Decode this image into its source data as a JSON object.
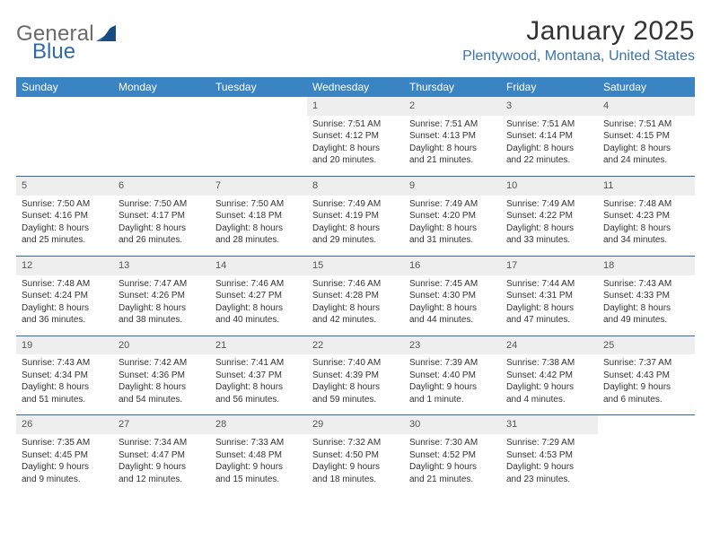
{
  "logo": {
    "word1": "General",
    "word2": "Blue"
  },
  "title": "January 2025",
  "location": "Plentywood, Montana, United States",
  "colors": {
    "header_bg": "#3b84c4",
    "header_text": "#ffffff",
    "accent": "#2f6aad",
    "daynum_bg": "#eeeeee",
    "body_text": "#333333",
    "location_text": "#3b73b0",
    "logo_gray": "#6a6a6a"
  },
  "day_headers": [
    "Sunday",
    "Monday",
    "Tuesday",
    "Wednesday",
    "Thursday",
    "Friday",
    "Saturday"
  ],
  "weeks": [
    [
      {
        "n": "",
        "l1": "",
        "l2": "",
        "l3": "",
        "l4": ""
      },
      {
        "n": "",
        "l1": "",
        "l2": "",
        "l3": "",
        "l4": ""
      },
      {
        "n": "",
        "l1": "",
        "l2": "",
        "l3": "",
        "l4": ""
      },
      {
        "n": "1",
        "l1": "Sunrise: 7:51 AM",
        "l2": "Sunset: 4:12 PM",
        "l3": "Daylight: 8 hours",
        "l4": "and 20 minutes."
      },
      {
        "n": "2",
        "l1": "Sunrise: 7:51 AM",
        "l2": "Sunset: 4:13 PM",
        "l3": "Daylight: 8 hours",
        "l4": "and 21 minutes."
      },
      {
        "n": "3",
        "l1": "Sunrise: 7:51 AM",
        "l2": "Sunset: 4:14 PM",
        "l3": "Daylight: 8 hours",
        "l4": "and 22 minutes."
      },
      {
        "n": "4",
        "l1": "Sunrise: 7:51 AM",
        "l2": "Sunset: 4:15 PM",
        "l3": "Daylight: 8 hours",
        "l4": "and 24 minutes."
      }
    ],
    [
      {
        "n": "5",
        "l1": "Sunrise: 7:50 AM",
        "l2": "Sunset: 4:16 PM",
        "l3": "Daylight: 8 hours",
        "l4": "and 25 minutes."
      },
      {
        "n": "6",
        "l1": "Sunrise: 7:50 AM",
        "l2": "Sunset: 4:17 PM",
        "l3": "Daylight: 8 hours",
        "l4": "and 26 minutes."
      },
      {
        "n": "7",
        "l1": "Sunrise: 7:50 AM",
        "l2": "Sunset: 4:18 PM",
        "l3": "Daylight: 8 hours",
        "l4": "and 28 minutes."
      },
      {
        "n": "8",
        "l1": "Sunrise: 7:49 AM",
        "l2": "Sunset: 4:19 PM",
        "l3": "Daylight: 8 hours",
        "l4": "and 29 minutes."
      },
      {
        "n": "9",
        "l1": "Sunrise: 7:49 AM",
        "l2": "Sunset: 4:20 PM",
        "l3": "Daylight: 8 hours",
        "l4": "and 31 minutes."
      },
      {
        "n": "10",
        "l1": "Sunrise: 7:49 AM",
        "l2": "Sunset: 4:22 PM",
        "l3": "Daylight: 8 hours",
        "l4": "and 33 minutes."
      },
      {
        "n": "11",
        "l1": "Sunrise: 7:48 AM",
        "l2": "Sunset: 4:23 PM",
        "l3": "Daylight: 8 hours",
        "l4": "and 34 minutes."
      }
    ],
    [
      {
        "n": "12",
        "l1": "Sunrise: 7:48 AM",
        "l2": "Sunset: 4:24 PM",
        "l3": "Daylight: 8 hours",
        "l4": "and 36 minutes."
      },
      {
        "n": "13",
        "l1": "Sunrise: 7:47 AM",
        "l2": "Sunset: 4:26 PM",
        "l3": "Daylight: 8 hours",
        "l4": "and 38 minutes."
      },
      {
        "n": "14",
        "l1": "Sunrise: 7:46 AM",
        "l2": "Sunset: 4:27 PM",
        "l3": "Daylight: 8 hours",
        "l4": "and 40 minutes."
      },
      {
        "n": "15",
        "l1": "Sunrise: 7:46 AM",
        "l2": "Sunset: 4:28 PM",
        "l3": "Daylight: 8 hours",
        "l4": "and 42 minutes."
      },
      {
        "n": "16",
        "l1": "Sunrise: 7:45 AM",
        "l2": "Sunset: 4:30 PM",
        "l3": "Daylight: 8 hours",
        "l4": "and 44 minutes."
      },
      {
        "n": "17",
        "l1": "Sunrise: 7:44 AM",
        "l2": "Sunset: 4:31 PM",
        "l3": "Daylight: 8 hours",
        "l4": "and 47 minutes."
      },
      {
        "n": "18",
        "l1": "Sunrise: 7:43 AM",
        "l2": "Sunset: 4:33 PM",
        "l3": "Daylight: 8 hours",
        "l4": "and 49 minutes."
      }
    ],
    [
      {
        "n": "19",
        "l1": "Sunrise: 7:43 AM",
        "l2": "Sunset: 4:34 PM",
        "l3": "Daylight: 8 hours",
        "l4": "and 51 minutes."
      },
      {
        "n": "20",
        "l1": "Sunrise: 7:42 AM",
        "l2": "Sunset: 4:36 PM",
        "l3": "Daylight: 8 hours",
        "l4": "and 54 minutes."
      },
      {
        "n": "21",
        "l1": "Sunrise: 7:41 AM",
        "l2": "Sunset: 4:37 PM",
        "l3": "Daylight: 8 hours",
        "l4": "and 56 minutes."
      },
      {
        "n": "22",
        "l1": "Sunrise: 7:40 AM",
        "l2": "Sunset: 4:39 PM",
        "l3": "Daylight: 8 hours",
        "l4": "and 59 minutes."
      },
      {
        "n": "23",
        "l1": "Sunrise: 7:39 AM",
        "l2": "Sunset: 4:40 PM",
        "l3": "Daylight: 9 hours",
        "l4": "and 1 minute."
      },
      {
        "n": "24",
        "l1": "Sunrise: 7:38 AM",
        "l2": "Sunset: 4:42 PM",
        "l3": "Daylight: 9 hours",
        "l4": "and 4 minutes."
      },
      {
        "n": "25",
        "l1": "Sunrise: 7:37 AM",
        "l2": "Sunset: 4:43 PM",
        "l3": "Daylight: 9 hours",
        "l4": "and 6 minutes."
      }
    ],
    [
      {
        "n": "26",
        "l1": "Sunrise: 7:35 AM",
        "l2": "Sunset: 4:45 PM",
        "l3": "Daylight: 9 hours",
        "l4": "and 9 minutes."
      },
      {
        "n": "27",
        "l1": "Sunrise: 7:34 AM",
        "l2": "Sunset: 4:47 PM",
        "l3": "Daylight: 9 hours",
        "l4": "and 12 minutes."
      },
      {
        "n": "28",
        "l1": "Sunrise: 7:33 AM",
        "l2": "Sunset: 4:48 PM",
        "l3": "Daylight: 9 hours",
        "l4": "and 15 minutes."
      },
      {
        "n": "29",
        "l1": "Sunrise: 7:32 AM",
        "l2": "Sunset: 4:50 PM",
        "l3": "Daylight: 9 hours",
        "l4": "and 18 minutes."
      },
      {
        "n": "30",
        "l1": "Sunrise: 7:30 AM",
        "l2": "Sunset: 4:52 PM",
        "l3": "Daylight: 9 hours",
        "l4": "and 21 minutes."
      },
      {
        "n": "31",
        "l1": "Sunrise: 7:29 AM",
        "l2": "Sunset: 4:53 PM",
        "l3": "Daylight: 9 hours",
        "l4": "and 23 minutes."
      },
      {
        "n": "",
        "l1": "",
        "l2": "",
        "l3": "",
        "l4": ""
      }
    ]
  ]
}
